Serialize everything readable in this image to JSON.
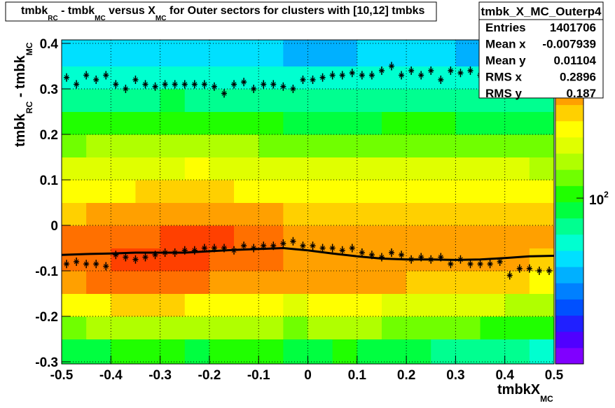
{
  "chart_data": {
    "type": "heatmap",
    "title": [
      {
        "text": "tmbk"
      },
      {
        "text": "RC",
        "sub": true
      },
      {
        "text": " - tmbk"
      },
      {
        "text": "MC",
        "sub": true
      },
      {
        "text": " versus X"
      },
      {
        "text": "MC",
        "sub": true
      },
      {
        "text": " for Outer sectors for clusters with [10,12] tmbks"
      }
    ],
    "x_label": [
      {
        "text": "tmbkX"
      },
      {
        "text": "MC",
        "sub": true
      }
    ],
    "y_label": [
      {
        "text": "tmbk"
      },
      {
        "text": "RC",
        "sub": true
      },
      {
        "text": " - tmbk"
      },
      {
        "text": "MC",
        "sub": true
      }
    ],
    "xlim": [
      -0.5,
      0.5
    ],
    "ylim": [
      -0.3,
      0.4
    ],
    "xticks": [
      -0.5,
      -0.4,
      -0.3,
      -0.2,
      -0.1,
      0,
      0.1,
      0.2,
      0.3,
      0.4,
      0.5
    ],
    "yticks": [
      -0.3,
      -0.2,
      -0.1,
      0,
      0.1,
      0.2,
      0.3,
      0.4
    ],
    "grid": true,
    "z_log": true,
    "zlim": [
      10,
      900
    ],
    "zticks": [
      {
        "value": 100,
        "label": "10",
        "exponent": "2"
      }
    ],
    "palette": [
      "#8000ff",
      "#5000ff",
      "#2020ff",
      "#0050ff",
      "#0080ff",
      "#00b0ff",
      "#00e0ff",
      "#00ffd0",
      "#00ff90",
      "#00ff40",
      "#20ff00",
      "#70ff00",
      "#b0ff00",
      "#e0ff00",
      "#ffff00",
      "#ffd000",
      "#ffa000",
      "#ff7000",
      "#ff4000",
      "#ff0000"
    ],
    "xbins": [
      -0.5,
      -0.45,
      -0.4,
      -0.35,
      -0.3,
      -0.25,
      -0.2,
      -0.15,
      -0.1,
      -0.05,
      0,
      0.05,
      0.1,
      0.15,
      0.2,
      0.25,
      0.3,
      0.35,
      0.4,
      0.45,
      0.5
    ],
    "ybins": [
      -0.3,
      -0.25,
      -0.2,
      -0.15,
      -0.1,
      -0.05,
      0,
      0.05,
      0.1,
      0.15,
      0.2,
      0.25,
      0.3,
      0.35,
      0.4
    ],
    "z": [
      [
        80,
        90,
        100,
        110,
        95,
        90,
        100,
        105,
        95,
        90,
        85,
        95,
        90,
        80,
        85,
        75,
        70,
        70,
        65,
        60
      ],
      [
        140,
        150,
        170,
        180,
        160,
        150,
        160,
        170,
        150,
        140,
        150,
        160,
        150,
        140,
        130,
        120,
        120,
        110,
        100,
        100
      ],
      [
        250,
        270,
        300,
        320,
        300,
        280,
        270,
        260,
        240,
        230,
        240,
        250,
        240,
        230,
        220,
        210,
        200,
        190,
        180,
        170
      ],
      [
        420,
        460,
        520,
        540,
        500,
        470,
        440,
        420,
        400,
        380,
        390,
        400,
        380,
        370,
        360,
        340,
        330,
        320,
        300,
        290
      ],
      [
        480,
        520,
        600,
        650,
        620,
        600,
        560,
        520,
        480,
        440,
        420,
        430,
        420,
        420,
        400,
        400,
        390,
        380,
        370,
        360
      ],
      [
        460,
        480,
        520,
        560,
        580,
        600,
        580,
        540,
        480,
        430,
        400,
        390,
        380,
        380,
        380,
        390,
        400,
        390,
        380,
        370
      ],
      [
        360,
        380,
        400,
        420,
        430,
        440,
        420,
        400,
        370,
        350,
        330,
        320,
        320,
        330,
        330,
        340,
        340,
        330,
        330,
        320
      ],
      [
        260,
        270,
        290,
        300,
        310,
        320,
        300,
        290,
        270,
        260,
        250,
        240,
        240,
        250,
        250,
        250,
        260,
        250,
        250,
        240
      ],
      [
        200,
        210,
        220,
        230,
        230,
        240,
        230,
        220,
        210,
        200,
        190,
        190,
        190,
        190,
        200,
        200,
        200,
        190,
        190,
        180
      ],
      [
        140,
        150,
        150,
        160,
        160,
        160,
        150,
        150,
        140,
        140,
        130,
        130,
        140,
        140,
        140,
        140,
        140,
        130,
        130,
        130
      ],
      [
        95,
        100,
        100,
        105,
        105,
        100,
        100,
        95,
        95,
        90,
        90,
        90,
        90,
        95,
        95,
        95,
        90,
        90,
        90,
        85
      ],
      [
        70,
        75,
        75,
        75,
        80,
        75,
        75,
        70,
        70,
        70,
        65,
        65,
        70,
        70,
        70,
        70,
        70,
        65,
        65,
        65
      ],
      [
        55,
        58,
        58,
        60,
        60,
        58,
        55,
        55,
        55,
        52,
        52,
        52,
        55,
        55,
        55,
        55,
        52,
        52,
        50,
        50
      ],
      [
        40,
        42,
        42,
        44,
        44,
        42,
        40,
        40,
        40,
        38,
        38,
        38,
        40,
        40,
        40,
        40,
        38,
        38,
        36,
        36
      ]
    ],
    "series": [
      {
        "kind": "markers",
        "color": "#000000",
        "x": [
          -0.49,
          -0.47,
          -0.45,
          -0.43,
          -0.41,
          -0.39,
          -0.37,
          -0.35,
          -0.33,
          -0.31,
          -0.29,
          -0.27,
          -0.25,
          -0.23,
          -0.21,
          -0.19,
          -0.17,
          -0.15,
          -0.13,
          -0.11,
          -0.09,
          -0.07,
          -0.05,
          -0.03,
          -0.01,
          0.01,
          0.03,
          0.05,
          0.07,
          0.09,
          0.11,
          0.13,
          0.15,
          0.17,
          0.19,
          0.21,
          0.23,
          0.25,
          0.27,
          0.29,
          0.31,
          0.33,
          0.35,
          0.37,
          0.39,
          0.41,
          0.43,
          0.45,
          0.47,
          0.49
        ],
        "values": [
          0.325,
          0.31,
          0.33,
          0.32,
          0.33,
          0.31,
          0.3,
          0.32,
          0.31,
          0.305,
          0.31,
          0.31,
          0.31,
          0.31,
          0.31,
          0.305,
          0.29,
          0.31,
          0.315,
          0.3,
          0.31,
          0.31,
          0.305,
          0.3,
          0.32,
          0.32,
          0.325,
          0.33,
          0.33,
          0.335,
          0.33,
          0.33,
          0.34,
          0.35,
          0.33,
          0.34,
          0.33,
          0.34,
          0.32,
          0.34,
          0.335,
          0.34,
          0.33,
          0.32,
          0.325,
          0.33,
          0.32,
          0.315,
          0.34,
          0.33
        ]
      },
      {
        "kind": "markers",
        "color": "#000000",
        "x": [
          -0.49,
          -0.47,
          -0.45,
          -0.43,
          -0.41,
          -0.39,
          -0.37,
          -0.35,
          -0.33,
          -0.31,
          -0.29,
          -0.27,
          -0.25,
          -0.23,
          -0.21,
          -0.19,
          -0.17,
          -0.15,
          -0.13,
          -0.11,
          -0.09,
          -0.07,
          -0.05,
          -0.03,
          -0.01,
          0.01,
          0.03,
          0.05,
          0.07,
          0.09,
          0.11,
          0.13,
          0.15,
          0.17,
          0.19,
          0.21,
          0.23,
          0.25,
          0.27,
          0.29,
          0.31,
          0.33,
          0.35,
          0.37,
          0.39,
          0.41,
          0.43,
          0.45,
          0.47,
          0.49
        ],
        "values": [
          -0.085,
          -0.08,
          -0.085,
          -0.085,
          -0.09,
          -0.065,
          -0.07,
          -0.075,
          -0.07,
          -0.065,
          -0.06,
          -0.06,
          -0.055,
          -0.055,
          -0.05,
          -0.05,
          -0.05,
          -0.055,
          -0.045,
          -0.05,
          -0.045,
          -0.045,
          -0.04,
          -0.035,
          -0.045,
          -0.045,
          -0.05,
          -0.05,
          -0.055,
          -0.05,
          -0.06,
          -0.065,
          -0.07,
          -0.06,
          -0.065,
          -0.075,
          -0.07,
          -0.075,
          -0.07,
          -0.085,
          -0.075,
          -0.085,
          -0.085,
          -0.085,
          -0.08,
          -0.11,
          -0.095,
          -0.095,
          -0.1,
          -0.1
        ]
      },
      {
        "kind": "line",
        "color": "#000000",
        "x": [
          -0.5,
          -0.45,
          -0.4,
          -0.35,
          -0.3,
          -0.25,
          -0.2,
          -0.15,
          -0.1,
          -0.05,
          0,
          0.05,
          0.1,
          0.15,
          0.2,
          0.25,
          0.3,
          0.35,
          0.4,
          0.45,
          0.5
        ],
        "values": [
          -0.065,
          -0.063,
          -0.062,
          -0.06,
          -0.06,
          -0.06,
          -0.057,
          -0.054,
          -0.052,
          -0.05,
          -0.055,
          -0.062,
          -0.068,
          -0.073,
          -0.075,
          -0.075,
          -0.076,
          -0.075,
          -0.072,
          -0.068,
          -0.067
        ]
      }
    ],
    "stats": {
      "name": "tmbk_X_MC_Outerp4",
      "rows": [
        [
          "Entries",
          "1401706"
        ],
        [
          "Mean x",
          "-0.007939"
        ],
        [
          "Mean y",
          "0.01104"
        ],
        [
          "RMS x",
          "0.2896"
        ],
        [
          "RMS y",
          "0.187"
        ]
      ]
    }
  }
}
